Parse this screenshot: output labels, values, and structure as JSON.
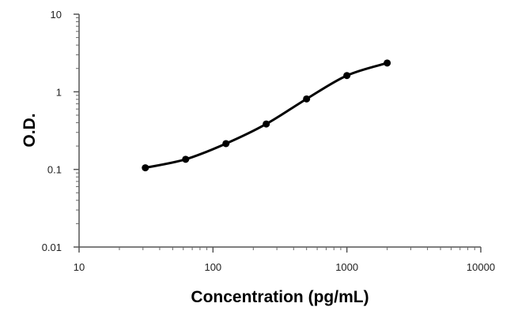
{
  "chart_data": {
    "type": "line",
    "title": "",
    "xlabel": "Concentration (pg/mL)",
    "ylabel": "O.D.",
    "xscale": "log",
    "yscale": "log",
    "xlim": [
      10,
      10000
    ],
    "ylim": [
      0.01,
      10
    ],
    "x_ticks": [
      10,
      100,
      1000,
      10000
    ],
    "x_tick_labels": [
      "10",
      "100",
      "1000",
      "10000"
    ],
    "y_ticks": [
      0.01,
      0.1,
      1,
      10
    ],
    "y_tick_labels": [
      "0.01",
      "0.1",
      "1",
      "10"
    ],
    "grid": false,
    "legend": "none",
    "series": [
      {
        "x": [
          31.25,
          62.5,
          125,
          250,
          500,
          1000,
          2000
        ],
        "y": [
          0.105,
          0.135,
          0.215,
          0.385,
          0.81,
          1.62,
          2.35
        ],
        "color": "#000000"
      }
    ]
  }
}
